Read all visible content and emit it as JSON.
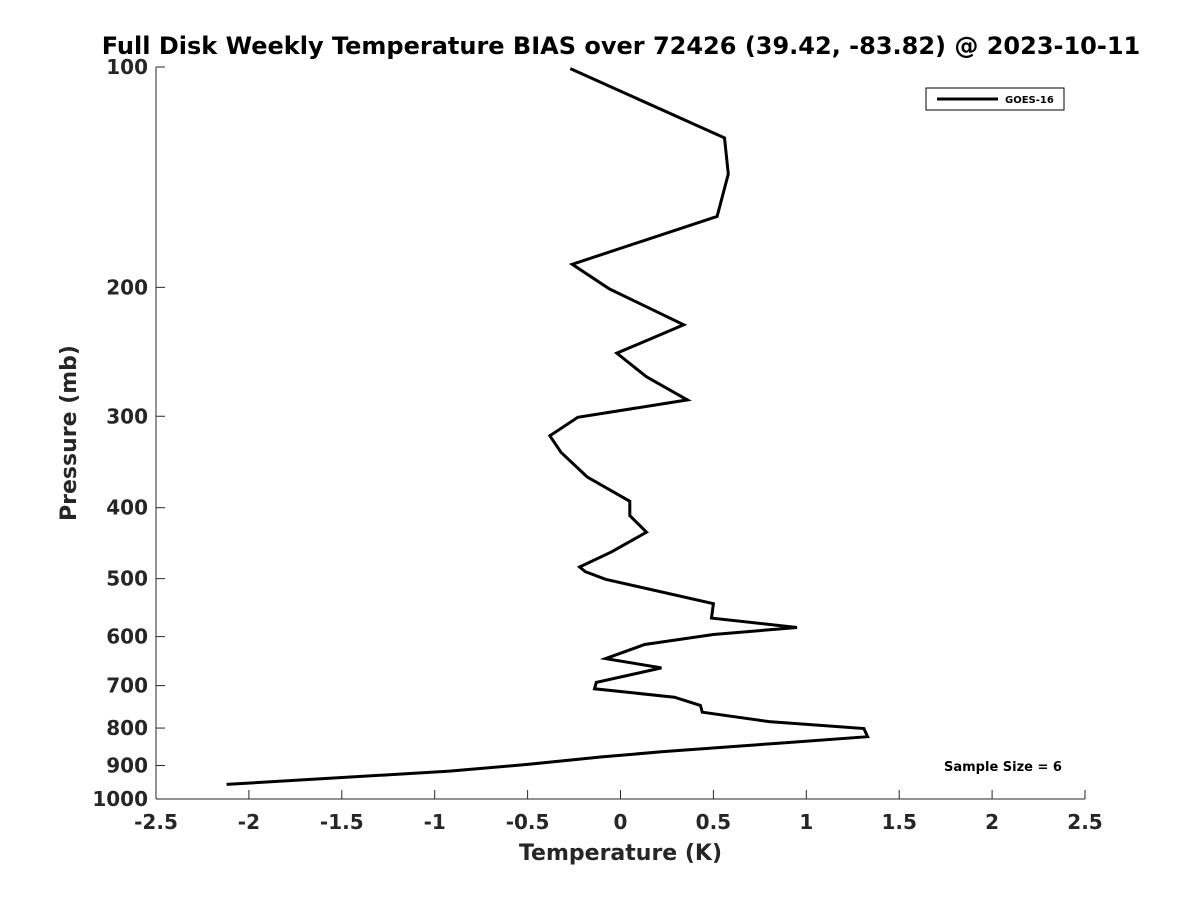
{
  "chart_data": {
    "type": "line",
    "title": "Full Disk Weekly Temperature BIAS over 72426 (39.42, -83.82) @ 2023-10-11",
    "xlabel": "Temperature (K)",
    "ylabel": "Pressure (mb)",
    "xlim": [
      -2.5,
      2.5
    ],
    "ylim": [
      1000,
      100
    ],
    "y_scale": "log",
    "y_reversed": true,
    "x_ticks": [
      "-2.5",
      "-2",
      "-1.5",
      "-1",
      "-0.5",
      "0",
      "0.5",
      "1",
      "1.5",
      "2",
      "2.5"
    ],
    "x_tick_values": [
      -2.5,
      -2,
      -1.5,
      -1,
      -0.5,
      0,
      0.5,
      1,
      1.5,
      2,
      2.5
    ],
    "y_ticks": [
      "100",
      "200",
      "300",
      "400",
      "500",
      "600",
      "700",
      "800",
      "900",
      "1000"
    ],
    "y_tick_values": [
      100,
      200,
      300,
      400,
      500,
      600,
      700,
      800,
      900,
      1000
    ],
    "grid": false,
    "legend_position": "top-right",
    "series": [
      {
        "name": "GOES-16",
        "color": "#000000",
        "points": [
          [
            -0.27,
            100.5
          ],
          [
            0.56,
            125
          ],
          [
            0.58,
            140
          ],
          [
            0.52,
            160
          ],
          [
            -0.26,
            186
          ],
          [
            -0.06,
            201
          ],
          [
            0.34,
            225
          ],
          [
            -0.02,
            246
          ],
          [
            0.14,
            265
          ],
          [
            0.36,
            285
          ],
          [
            -0.23,
            301
          ],
          [
            -0.38,
            319
          ],
          [
            -0.32,
            336
          ],
          [
            -0.18,
            363
          ],
          [
            0.05,
            392
          ],
          [
            0.05,
            410
          ],
          [
            0.14,
            432
          ],
          [
            -0.05,
            460
          ],
          [
            -0.22,
            482
          ],
          [
            -0.19,
            489
          ],
          [
            -0.08,
            501
          ],
          [
            0.5,
            541
          ],
          [
            0.49,
            566
          ],
          [
            0.95,
            583
          ],
          [
            0.5,
            596
          ],
          [
            0.13,
            615
          ],
          [
            -0.08,
            643
          ],
          [
            0.22,
            662
          ],
          [
            -0.13,
            693
          ],
          [
            -0.14,
            707
          ],
          [
            0.29,
            726
          ],
          [
            0.43,
            745
          ],
          [
            0.44,
            761
          ],
          [
            0.8,
            784
          ],
          [
            1.31,
            801
          ],
          [
            1.33,
            822
          ],
          [
            0.85,
            839
          ],
          [
            0.22,
            862
          ],
          [
            -0.1,
            876
          ],
          [
            -0.5,
            897
          ],
          [
            -0.92,
            916
          ],
          [
            -2.12,
            955
          ]
        ]
      }
    ],
    "annotations": [
      "Sample Size = 6"
    ]
  }
}
